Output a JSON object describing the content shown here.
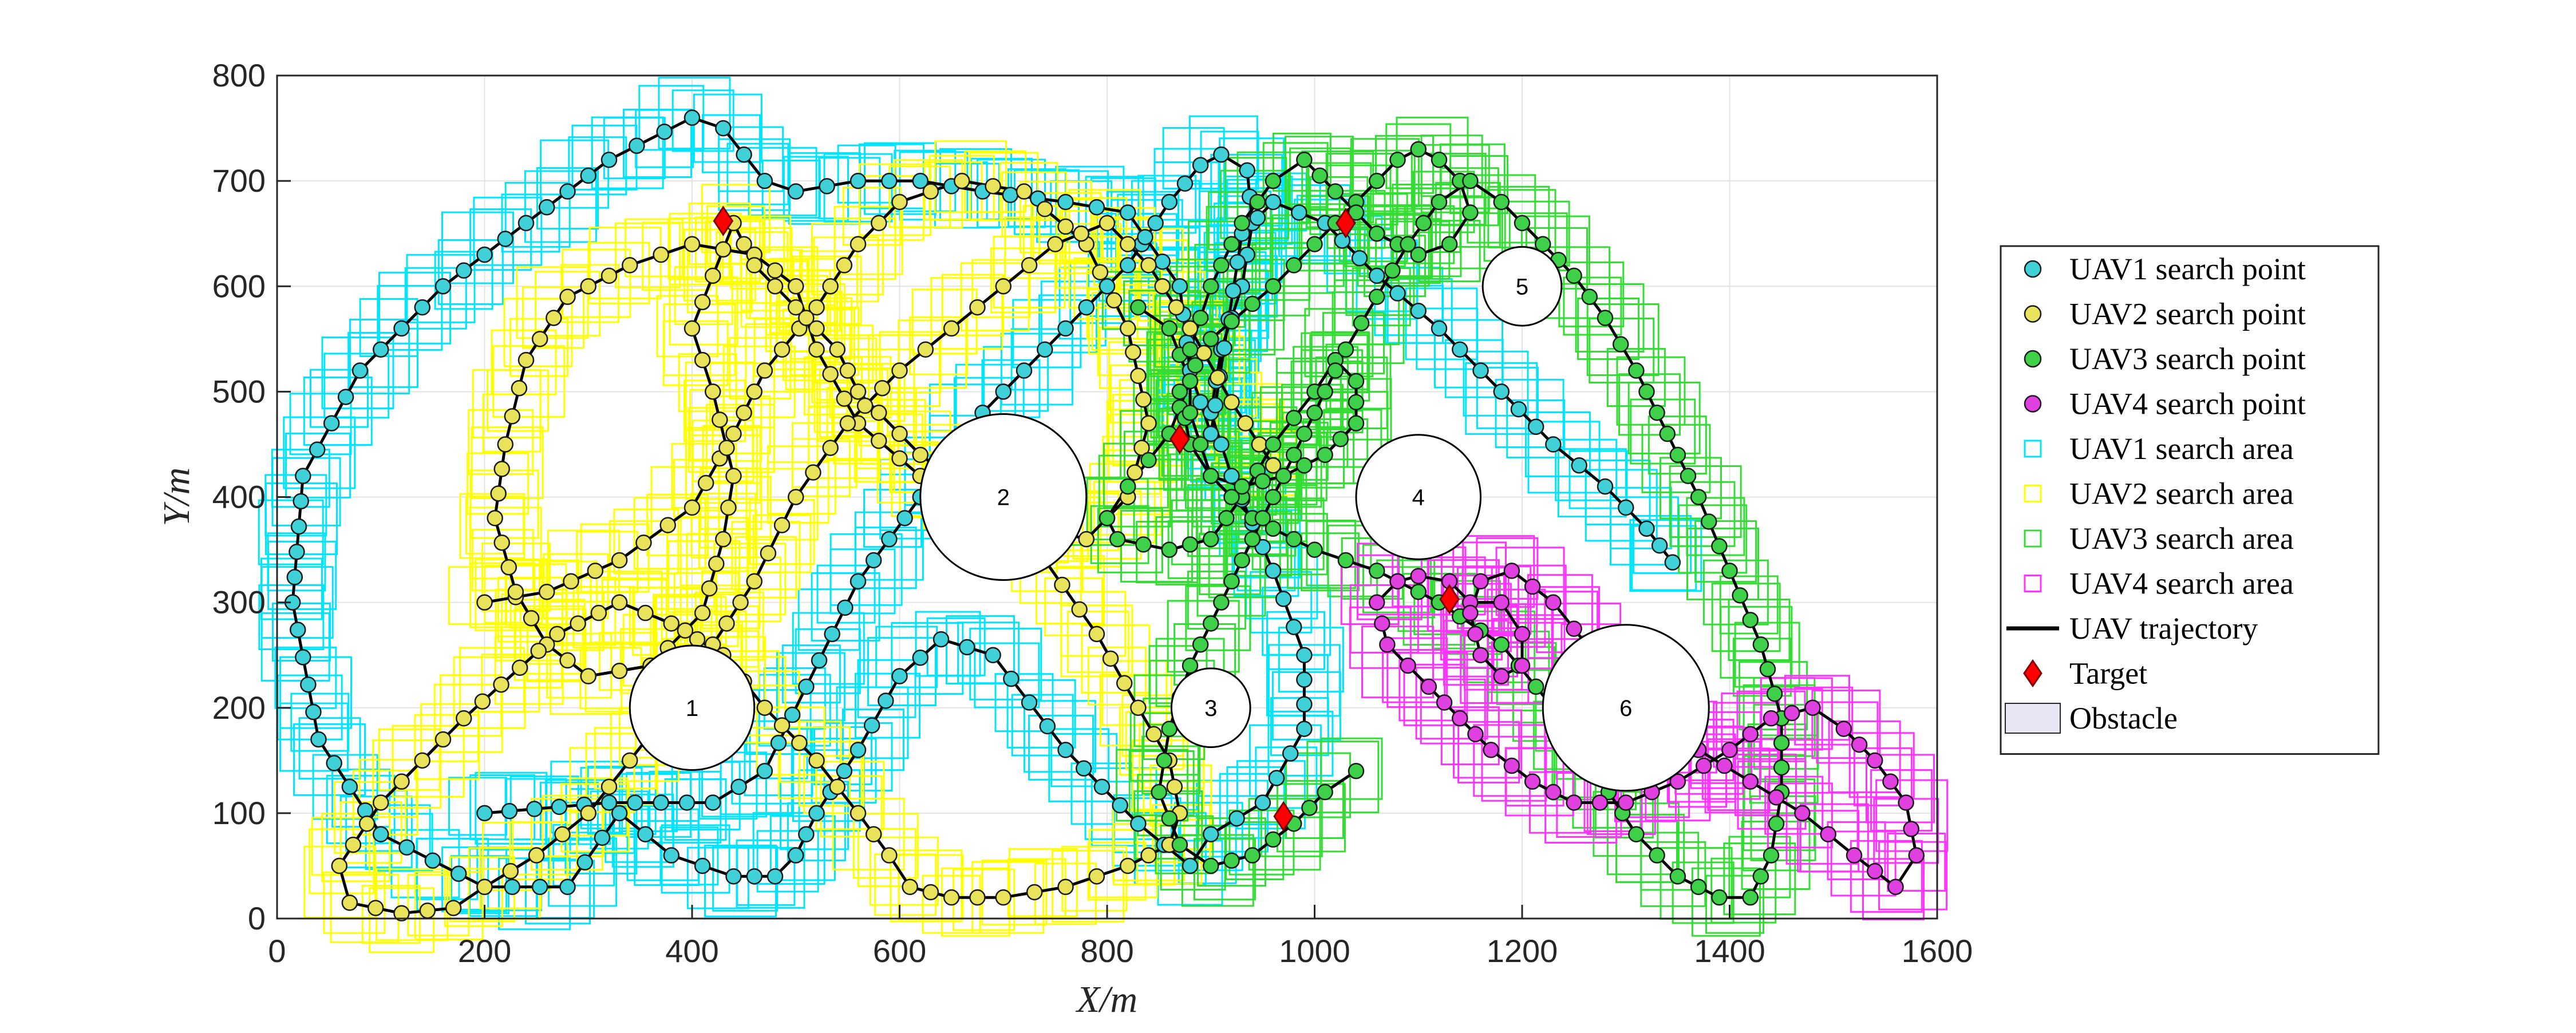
{
  "chart_data": {
    "type": "scatter",
    "xlabel": "X/m",
    "ylabel": "Y/m",
    "xlim": [
      0,
      1600
    ],
    "ylim": [
      0,
      800
    ],
    "xticks": [
      0,
      200,
      400,
      600,
      800,
      1000,
      1200,
      1400,
      1600
    ],
    "yticks": [
      0,
      100,
      200,
      300,
      400,
      500,
      600,
      700,
      800
    ],
    "grid": true,
    "legend_position": "outside-right",
    "legend": [
      {
        "label": "UAV1 search point",
        "marker": "circle",
        "color": "#3fd0d8"
      },
      {
        "label": "UAV2 search point",
        "marker": "circle",
        "color": "#e8e35a"
      },
      {
        "label": "UAV3 search point",
        "marker": "circle",
        "color": "#3fd04a"
      },
      {
        "label": "UAV4 search point",
        "marker": "circle",
        "color": "#e040e0"
      },
      {
        "label": "UAV1 search area",
        "marker": "square",
        "color": "#00e5ff"
      },
      {
        "label": "UAV2 search area",
        "marker": "square",
        "color": "#ffff00"
      },
      {
        "label": "UAV3 search area",
        "marker": "square",
        "color": "#33dd33"
      },
      {
        "label": "UAV4 search area",
        "marker": "square",
        "color": "#ff33ff"
      },
      {
        "label": "UAV trajectory",
        "marker": "line",
        "color": "#000000"
      },
      {
        "label": "Target",
        "marker": "diamond",
        "color": "#ff0000"
      },
      {
        "label": "Obstacle",
        "marker": "rect",
        "color": "#e6e6f5"
      }
    ],
    "obstacles": [
      {
        "label": "1",
        "x": 400,
        "y": 200,
        "r": 60
      },
      {
        "label": "2",
        "x": 700,
        "y": 400,
        "r": 80
      },
      {
        "label": "3",
        "x": 900,
        "y": 200,
        "r": 38
      },
      {
        "label": "4",
        "x": 1100,
        "y": 400,
        "r": 60
      },
      {
        "label": "5",
        "x": 1200,
        "y": 600,
        "r": 38
      },
      {
        "label": "6",
        "x": 1300,
        "y": 200,
        "r": 80
      }
    ],
    "targets": [
      {
        "x": 430,
        "y": 662
      },
      {
        "x": 1030,
        "y": 660
      },
      {
        "x": 870,
        "y": 455
      },
      {
        "x": 1130,
        "y": 303
      },
      {
        "x": 970,
        "y": 97
      }
    ],
    "series": [
      {
        "name": "UAV1",
        "color": "#3fd0d8",
        "area_color": "#00e5ff",
        "x": [
          200,
          320,
          420,
          470,
          510,
          560,
          620,
          680,
          760,
          820,
          860,
          890,
          910,
          935,
          940,
          930,
          910,
          900,
          920,
          960,
          990,
          990,
          950,
          900,
          880,
          830,
          760,
          690,
          640,
          600,
          560,
          520,
          500,
          480,
          440,
          380,
          330,
          280,
          200,
          100,
          40,
          15,
          25,
          80,
          160,
          240,
          320,
          400,
          430,
          470,
          500,
          560,
          620,
          680,
          760,
          820,
          870,
          880,
          900,
          930,
          960,
          1010,
          1060,
          1120,
          1180,
          1230,
          1280,
          1320,
          1345
        ],
        "y": [
          100,
          110,
          110,
          140,
          220,
          320,
          400,
          480,
          560,
          620,
          680,
          715,
          725,
          710,
          660,
          600,
          540,
          480,
          420,
          330,
          250,
          180,
          110,
          80,
          50,
          90,
          160,
          250,
          265,
          230,
          160,
          100,
          60,
          40,
          40,
          60,
          100,
          30,
          30,
          80,
          170,
          300,
          420,
          520,
          600,
          660,
          720,
          760,
          750,
          700,
          690,
          700,
          700,
          690,
          680,
          670,
          600,
          520,
          460,
          650,
          680,
          660,
          610,
          560,
          500,
          450,
          410,
          370,
          338
        ]
      },
      {
        "name": "UAV2",
        "color": "#e8e35a",
        "area_color": "#ffff00",
        "x": [
          200,
          260,
          330,
          400,
          440,
          470,
          520,
          560,
          600,
          660,
          720,
          780,
          820,
          840,
          820,
          780,
          700,
          620,
          560,
          520,
          500,
          460,
          400,
          340,
          280,
          240,
          220,
          210,
          230,
          260,
          300,
          360,
          410,
          430,
          440,
          420,
          400,
          420,
          440,
          460,
          500,
          540,
          560,
          620,
          690,
          740,
          790,
          830,
          860,
          870,
          860,
          820,
          760,
          700,
          650,
          610,
          590,
          560,
          520,
          470,
          430,
          380,
          330,
          270,
          180,
          100,
          60,
          70,
          120,
          170,
          200,
          250,
          300,
          340,
          380,
          420,
          460,
          500,
          550,
          600,
          650,
          700,
          750,
          800,
          840,
          880,
          920,
          960
        ],
        "y": [
          300,
          310,
          340,
          390,
          460,
          520,
          580,
          640,
          680,
          700,
          690,
          640,
          560,
          470,
          400,
          360,
          380,
          420,
          470,
          540,
          600,
          630,
          640,
          620,
          590,
          530,
          450,
          380,
          310,
          260,
          230,
          240,
          290,
          360,
          420,
          500,
          560,
          610,
          660,
          620,
          580,
          540,
          500,
          440,
          390,
          340,
          270,
          200,
          150,
          100,
          70,
          50,
          30,
          20,
          20,
          30,
          60,
          100,
          150,
          200,
          250,
          280,
          300,
          270,
          190,
          110,
          50,
          15,
          5,
          10,
          30,
          60,
          100,
          150,
          200,
          260,
          320,
          400,
          470,
          520,
          560,
          600,
          640,
          660,
          620,
          560,
          490,
          430
        ]
      },
      {
        "name": "UAV3",
        "color": "#3fd04a",
        "area_color": "#33dd33",
        "x": [
          830,
          860,
          880,
          860,
          820,
          800,
          810,
          860,
          900,
          930,
          960,
          1000,
          1020,
          1040,
          1040,
          1010,
          970,
          930,
          900,
          880,
          870,
          900,
          960,
          1020,
          1060,
          1080,
          1100,
          1120,
          1140,
          1150,
          1130,
          1100,
          1060,
          1020,
          990,
          960,
          930,
          900,
          880,
          880,
          900,
          940,
          1000,
          1060,
          1120,
          1180,
          1230,
          1270,
          1310,
          1350,
          1390,
          1420,
          1440,
          1450,
          1450,
          1430,
          1400,
          1370,
          1340,
          1310,
          1280,
          1250,
          1220,
          1200,
          1180,
          1150,
          1120,
          1090,
          1060,
          1030,
          1000,
          970,
          940,
          910,
          880,
          860,
          850,
          870,
          900,
          940,
          980,
          1010,
          1040
        ],
        "y": [
          580,
          560,
          510,
          460,
          410,
          380,
          360,
          350,
          360,
          400,
          450,
          500,
          530,
          510,
          470,
          440,
          420,
          410,
          420,
          450,
          500,
          550,
          600,
          660,
          700,
          720,
          730,
          720,
          700,
          670,
          640,
          630,
          650,
          690,
          720,
          700,
          660,
          600,
          540,
          480,
          420,
          380,
          350,
          330,
          300,
          260,
          200,
          140,
          80,
          40,
          20,
          20,
          60,
          120,
          190,
          260,
          330,
          400,
          460,
          520,
          570,
          610,
          640,
          660,
          680,
          700,
          680,
          640,
          590,
          540,
          480,
          420,
          360,
          300,
          240,
          180,
          120,
          70,
          50,
          60,
          90,
          120,
          140
        ]
      },
      {
        "name": "UAV4",
        "color": "#e040e0",
        "area_color": "#ff33ff",
        "x": [
          1060,
          1080,
          1100,
          1130,
          1150,
          1180,
          1200,
          1200,
          1180,
          1160,
          1150,
          1160,
          1190,
          1230,
          1270,
          1320,
          1370,
          1420,
          1470,
          1520,
          1560,
          1580,
          1570,
          1540,
          1510,
          1480,
          1440,
          1400,
          1350,
          1300,
          1250,
          1210,
          1170,
          1140,
          1110,
          1090,
          1070,
          1065
        ],
        "y": [
          300,
          320,
          325,
          320,
          300,
          300,
          270,
          240,
          230,
          250,
          290,
          320,
          330,
          300,
          250,
          200,
          160,
          130,
          100,
          60,
          30,
          60,
          110,
          150,
          180,
          200,
          190,
          160,
          130,
          110,
          110,
          130,
          160,
          190,
          220,
          240,
          260,
          280
        ]
      }
    ]
  }
}
